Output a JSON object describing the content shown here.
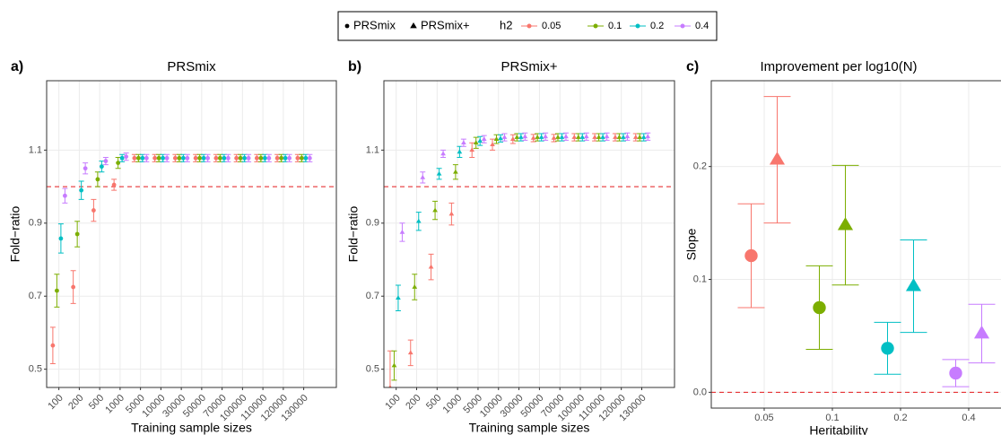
{
  "chart_data": [
    {
      "type": "errorpoint",
      "panel_label": "a)",
      "title": "PRSmix",
      "x_label": "Training sample sizes",
      "y_label": "Fold−ratio",
      "marker": "circle",
      "legend_title": "h2",
      "legend_position": "top",
      "grid": true,
      "hline": 1,
      "categories": [
        "100",
        "200",
        "500",
        "1000",
        "5000",
        "10000",
        "30000",
        "50000",
        "70000",
        "100000",
        "110000",
        "120000",
        "130000"
      ],
      "ylim": [
        0.45,
        1.29
      ],
      "yticks": [
        0.5,
        0.7,
        0.9,
        1.1
      ],
      "series": [
        {
          "name": "0.05",
          "color": "#F8766D",
          "values": [
            0.565,
            0.725,
            0.935,
            1.005,
            1.078,
            1.078,
            1.078,
            1.078,
            1.078,
            1.078,
            1.078,
            1.078,
            1.078
          ],
          "errors": [
            0.05,
            0.045,
            0.03,
            0.015,
            0.01,
            0.01,
            0.01,
            0.01,
            0.01,
            0.01,
            0.01,
            0.01,
            0.01
          ]
        },
        {
          "name": "0.1",
          "color": "#7CAE00",
          "values": [
            0.715,
            0.87,
            1.02,
            1.065,
            1.078,
            1.078,
            1.078,
            1.078,
            1.078,
            1.078,
            1.078,
            1.078,
            1.078
          ],
          "errors": [
            0.045,
            0.035,
            0.02,
            0.015,
            0.01,
            0.01,
            0.01,
            0.01,
            0.01,
            0.01,
            0.01,
            0.01,
            0.01
          ]
        },
        {
          "name": "0.2",
          "color": "#00BFC4",
          "values": [
            0.858,
            0.99,
            1.055,
            1.078,
            1.078,
            1.078,
            1.078,
            1.078,
            1.078,
            1.078,
            1.078,
            1.078,
            1.078
          ],
          "errors": [
            0.04,
            0.025,
            0.015,
            0.01,
            0.01,
            0.01,
            0.01,
            0.01,
            0.01,
            0.01,
            0.01,
            0.01,
            0.01
          ]
        },
        {
          "name": "0.4",
          "color": "#C77CFF",
          "values": [
            0.975,
            1.05,
            1.07,
            1.082,
            1.078,
            1.078,
            1.078,
            1.078,
            1.078,
            1.078,
            1.078,
            1.078,
            1.078
          ],
          "errors": [
            0.02,
            0.015,
            0.01,
            0.01,
            0.01,
            0.01,
            0.01,
            0.01,
            0.01,
            0.01,
            0.01,
            0.01,
            0.01
          ]
        }
      ]
    },
    {
      "type": "errorpoint",
      "panel_label": "b)",
      "title": "PRSmix+",
      "x_label": "Training sample sizes",
      "y_label": "Fold−ratio",
      "marker": "triangle",
      "grid": true,
      "hline": 1,
      "categories": [
        "100",
        "200",
        "500",
        "1000",
        "5000",
        "10000",
        "30000",
        "50000",
        "70000",
        "100000",
        "110000",
        "120000",
        "130000"
      ],
      "ylim": [
        0.45,
        1.29
      ],
      "yticks": [
        0.5,
        0.7,
        0.9,
        1.1
      ],
      "series": [
        {
          "name": "0.05",
          "color": "#F8766D",
          "values": [
            0.45,
            0.545,
            0.78,
            0.925,
            1.1,
            1.115,
            1.13,
            1.133,
            1.133,
            1.135,
            1.135,
            1.135,
            1.135
          ],
          "errors": [
            0.1,
            0.035,
            0.035,
            0.03,
            0.02,
            0.015,
            0.012,
            0.01,
            0.01,
            0.01,
            0.01,
            0.01,
            0.01
          ]
        },
        {
          "name": "0.1",
          "color": "#7CAE00",
          "values": [
            0.51,
            0.725,
            0.935,
            1.04,
            1.12,
            1.13,
            1.135,
            1.135,
            1.135,
            1.135,
            1.135,
            1.135,
            1.135
          ],
          "errors": [
            0.04,
            0.035,
            0.025,
            0.02,
            0.015,
            0.012,
            0.01,
            0.01,
            0.01,
            0.01,
            0.01,
            0.01,
            0.01
          ]
        },
        {
          "name": "0.2",
          "color": "#00BFC4",
          "values": [
            0.695,
            0.905,
            1.035,
            1.095,
            1.125,
            1.132,
            1.135,
            1.135,
            1.135,
            1.135,
            1.135,
            1.135,
            1.135
          ],
          "errors": [
            0.035,
            0.025,
            0.015,
            0.015,
            0.012,
            0.01,
            0.01,
            0.01,
            0.01,
            0.01,
            0.01,
            0.01,
            0.01
          ]
        },
        {
          "name": "0.4",
          "color": "#C77CFF",
          "values": [
            0.875,
            1.025,
            1.09,
            1.12,
            1.13,
            1.135,
            1.137,
            1.137,
            1.137,
            1.137,
            1.137,
            1.137,
            1.137
          ],
          "errors": [
            0.025,
            0.015,
            0.01,
            0.01,
            0.01,
            0.01,
            0.01,
            0.01,
            0.01,
            0.01,
            0.01,
            0.01,
            0.01
          ]
        }
      ]
    },
    {
      "type": "errorpoint",
      "panel_label": "c)",
      "title": "Improvement per log10(N)",
      "x_label": "Heritability",
      "y_label": "Slope",
      "grid": true,
      "hline": 0,
      "categories": [
        "0.05",
        "0.1",
        "0.2",
        "0.4"
      ],
      "colors": [
        "#F8766D",
        "#7CAE00",
        "#00BFC4",
        "#C77CFF"
      ],
      "ylim": [
        -0.014,
        0.276
      ],
      "yticks": [
        {
          "value": 0,
          "label": "0.0"
        },
        0.1,
        0.2
      ],
      "series": [
        {
          "name": "PRSmix",
          "marker": "circle",
          "values": [
            0.121,
            0.075,
            0.039,
            0.017
          ],
          "errors": [
            0.046,
            0.037,
            0.023,
            0.012
          ]
        },
        {
          "name": "PRSmix+",
          "marker": "triangle",
          "values": [
            0.206,
            0.148,
            0.094,
            0.052
          ],
          "errors": [
            0.056,
            0.053,
            0.041,
            0.026
          ]
        }
      ]
    }
  ]
}
